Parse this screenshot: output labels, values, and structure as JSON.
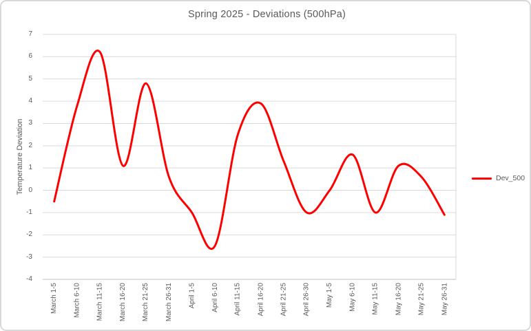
{
  "chart": {
    "title": "Spring 2025 - Deviations (500hPa)",
    "ylabel": "Temperature Deviation",
    "line_color": "#FF0000",
    "grid_color": "#D9D9D9",
    "axis_line_color": "#BFBFBF",
    "text_color": "#595959",
    "ymin": -4,
    "ymax": 7,
    "ystep": 1
  },
  "chart_data": {
    "type": "line",
    "title": "Spring 2025 - Deviations (500hPa)",
    "xlabel": "",
    "ylabel": "Temperature Deviation",
    "ylim": [
      -4,
      7
    ],
    "grid": true,
    "smooth": true,
    "legend_position": "right",
    "categories": [
      "March 1-5",
      "March 6-10",
      "March 11-15",
      "March 16-20",
      "March 21-25",
      "March 26-31",
      "April 1-5",
      "April 6-10",
      "April 11-15",
      "April 16-20",
      "April 21-25",
      "April 26-30",
      "May 1-5",
      "May 6-10",
      "May 11-15",
      "May 16-20",
      "May 21-25",
      "May 26-31"
    ],
    "series": [
      {
        "name": "Dev_500",
        "color": "#FF0000",
        "values": [
          -0.5,
          3.8,
          6.2,
          1.1,
          4.8,
          0.6,
          -1.0,
          -2.5,
          2.5,
          3.9,
          1.3,
          -1.0,
          0.0,
          1.6,
          -1.0,
          1.1,
          0.6,
          -1.1
        ]
      }
    ]
  }
}
